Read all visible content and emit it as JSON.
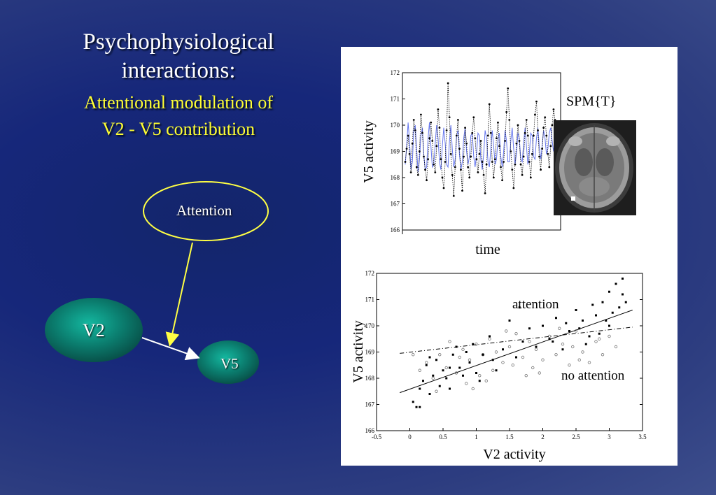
{
  "title": "Psychophysiological interactions:",
  "subtitle_line1": "Attentional modulation of",
  "subtitle_line2": "V2 - V5 contribution",
  "diagram": {
    "attention_label": "Attention",
    "v2_label": "V2",
    "v5_label": "V5",
    "colors": {
      "ellipse_stroke": "#ffff44",
      "arrow_attention": "#ffff44",
      "arrow_v2v5": "#ffffff",
      "node_fill": "#0d8a7a"
    }
  },
  "figure": {
    "spm_label": "SPM{T}",
    "brain_icon": "brain-slice-image"
  },
  "chart_data": [
    {
      "type": "line",
      "xlabel": "time",
      "ylabel": "V5 activity",
      "ylim": [
        166,
        172
      ],
      "yticks": [
        "166",
        "167",
        "168",
        "169",
        "170",
        "171",
        "172"
      ],
      "series": [
        {
          "values": [
            168.6,
            169.1,
            169.6,
            168.9,
            168.2,
            169.3,
            170.2,
            169.8,
            168.4,
            168.1,
            169.0,
            170.4,
            169.7,
            168.8,
            168.3,
            167.9,
            168.7,
            169.5,
            170.1,
            169.4,
            168.5,
            168.2,
            169.2,
            170.6,
            169.9,
            168.7,
            168.0,
            167.6,
            168.6,
            169.8,
            171.6,
            170.3,
            168.9,
            168.1,
            167.3,
            168.4,
            169.6,
            170.2,
            169.1,
            168.3,
            167.5,
            168.8,
            169.9,
            169.3,
            168.4,
            168.0,
            168.8,
            169.7,
            170.3,
            169.5,
            168.7,
            168.2,
            168.9,
            169.4,
            168.6,
            168.1,
            167.4,
            168.5,
            169.6,
            170.8,
            169.7,
            168.6,
            168.0,
            168.7,
            169.5,
            170.1,
            169.2,
            168.4,
            167.9,
            168.6,
            169.4,
            170.5,
            171.4,
            170.2,
            169.0,
            168.3,
            167.6,
            168.5,
            169.3,
            170.0,
            169.4,
            168.5,
            168.1,
            168.8,
            169.7,
            170.2,
            169.6,
            168.6,
            168.0,
            168.9,
            169.6,
            170.4,
            170.9,
            169.8,
            168.8,
            168.3,
            169.1,
            169.9,
            170.3,
            169.6,
            168.9,
            168.4,
            169.2,
            170.0,
            170.6,
            170.2,
            169.5
          ]
        },
        {
          "values": [
            168.5,
            169.2,
            170.1,
            169.4,
            168.3,
            168.6,
            169.8,
            170.0,
            169.1,
            168.2,
            168.7,
            169.6,
            169.9,
            168.9,
            168.3,
            168.4,
            169.5,
            170.1,
            169.2,
            168.4,
            168.5,
            169.3,
            170.0,
            169.5,
            168.6,
            168.3,
            169.2,
            169.9,
            169.3,
            168.5,
            168.4,
            169.4,
            170.0,
            169.1,
            168.4,
            168.7,
            169.6,
            169.8,
            168.9,
            168.3,
            168.6,
            169.5,
            169.9,
            169.0,
            168.5,
            168.8,
            169.6,
            169.7,
            168.8,
            168.4,
            168.9,
            169.7,
            169.6,
            168.7,
            168.3,
            168.9,
            169.8,
            169.5,
            168.6,
            168.4,
            169.1,
            169.8,
            169.2,
            168.5,
            168.7,
            169.5,
            169.7,
            168.8,
            168.4,
            169.0,
            169.8,
            169.4,
            168.6,
            168.6,
            169.4,
            169.9,
            169.1,
            168.5,
            168.9,
            169.7,
            169.5,
            168.7,
            168.6,
            169.3,
            169.9,
            169.2,
            168.5,
            168.9,
            169.7,
            169.6,
            168.8,
            168.7,
            169.5,
            169.9,
            169.2,
            168.7,
            169.2,
            169.8,
            169.5,
            168.9,
            169.1,
            169.7,
            169.9,
            169.4,
            169.0,
            169.5,
            169.8
          ]
        }
      ],
      "colors": {
        "raw": "#000000",
        "fit": "#6677ee"
      }
    },
    {
      "type": "scatter",
      "xlabel": "V2 activity",
      "ylabel": "V5 activity",
      "xlim": [
        -0.5,
        3.5
      ],
      "ylim": [
        166,
        172
      ],
      "xticks": [
        "-0.5",
        "0",
        "0.5",
        "1",
        "1.5",
        "2",
        "2.5",
        "3",
        "3.5"
      ],
      "yticks": [
        "166",
        "167",
        "168",
        "169",
        "170",
        "171",
        "172"
      ],
      "annotations": [
        "attention",
        "no attention"
      ],
      "series": [
        {
          "name": "attention",
          "points": [
            [
              0.05,
              167.1
            ],
            [
              0.1,
              166.9
            ],
            [
              0.15,
              167.6
            ],
            [
              0.2,
              167.9
            ],
            [
              0.25,
              168.5
            ],
            [
              0.3,
              167.4
            ],
            [
              0.35,
              168.1
            ],
            [
              0.4,
              168.7
            ],
            [
              0.45,
              167.7
            ],
            [
              0.5,
              168.3
            ],
            [
              0.55,
              168.0
            ],
            [
              0.6,
              167.6
            ],
            [
              0.65,
              168.9
            ],
            [
              0.7,
              169.2
            ],
            [
              0.75,
              168.4
            ],
            [
              0.8,
              168.1
            ],
            [
              0.85,
              169.0
            ],
            [
              0.9,
              168.6
            ],
            [
              0.95,
              169.3
            ],
            [
              1.0,
              168.2
            ],
            [
              1.1,
              168.9
            ],
            [
              1.2,
              169.6
            ],
            [
              1.3,
              168.3
            ],
            [
              1.4,
              169.1
            ],
            [
              1.5,
              170.2
            ],
            [
              1.6,
              168.8
            ],
            [
              1.7,
              169.4
            ],
            [
              1.8,
              169.9
            ],
            [
              1.9,
              169.2
            ],
            [
              2.0,
              170.0
            ],
            [
              2.1,
              169.5
            ],
            [
              2.15,
              169.4
            ],
            [
              2.2,
              170.3
            ],
            [
              2.3,
              169.1
            ],
            [
              2.4,
              169.8
            ],
            [
              2.5,
              170.6
            ],
            [
              2.55,
              169.9
            ],
            [
              2.6,
              170.2
            ],
            [
              2.7,
              169.6
            ],
            [
              2.75,
              170.8
            ],
            [
              2.8,
              170.4
            ],
            [
              2.85,
              169.7
            ],
            [
              2.9,
              170.9
            ],
            [
              2.95,
              170.2
            ],
            [
              3.0,
              171.3
            ],
            [
              3.05,
              170.5
            ],
            [
              3.1,
              171.6
            ],
            [
              3.15,
              170.7
            ],
            [
              3.2,
              171.8
            ],
            [
              3.25,
              170.9
            ],
            [
              0.3,
              168.8
            ],
            [
              0.6,
              168.4
            ],
            [
              1.25,
              168.7
            ],
            [
              1.65,
              170.7
            ],
            [
              2.35,
              170.1
            ],
            [
              2.65,
              169.3
            ],
            [
              3.0,
              170.0
            ],
            [
              3.2,
              171.2
            ],
            [
              0.15,
              166.9
            ],
            [
              1.05,
              167.9
            ]
          ],
          "fit": [
            [
              -0.15,
              167.45
            ],
            [
              3.35,
              170.6
            ]
          ]
        },
        {
          "name": "no attention",
          "points": [
            [
              0.05,
              168.9
            ],
            [
              0.15,
              168.3
            ],
            [
              0.25,
              168.6
            ],
            [
              0.35,
              168.0
            ],
            [
              0.45,
              168.9
            ],
            [
              0.55,
              168.4
            ],
            [
              0.6,
              169.4
            ],
            [
              0.7,
              168.2
            ],
            [
              0.8,
              169.1
            ],
            [
              0.85,
              167.8
            ],
            [
              0.9,
              168.7
            ],
            [
              1.0,
              169.3
            ],
            [
              1.05,
              168.1
            ],
            [
              1.1,
              168.9
            ],
            [
              1.2,
              169.5
            ],
            [
              1.25,
              168.3
            ],
            [
              1.3,
              169.0
            ],
            [
              1.4,
              168.6
            ],
            [
              1.5,
              169.2
            ],
            [
              1.55,
              168.5
            ],
            [
              1.6,
              169.7
            ],
            [
              1.7,
              168.8
            ],
            [
              1.8,
              169.4
            ],
            [
              1.85,
              168.4
            ],
            [
              1.9,
              169.1
            ],
            [
              2.0,
              168.7
            ],
            [
              2.1,
              169.6
            ],
            [
              2.2,
              168.9
            ],
            [
              2.3,
              169.3
            ],
            [
              2.4,
              168.5
            ],
            [
              2.5,
              169.8
            ],
            [
              2.6,
              169.0
            ],
            [
              2.7,
              168.6
            ],
            [
              2.8,
              169.4
            ],
            [
              2.9,
              168.9
            ],
            [
              3.0,
              169.6
            ],
            [
              3.1,
              169.2
            ],
            [
              0.4,
              167.5
            ],
            [
              0.75,
              168.8
            ],
            [
              1.15,
              167.9
            ],
            [
              1.45,
              169.8
            ],
            [
              1.95,
              168.2
            ],
            [
              2.25,
              169.9
            ],
            [
              2.55,
              168.7
            ],
            [
              2.85,
              169.5
            ],
            [
              0.95,
              167.6
            ],
            [
              1.75,
              168.1
            ],
            [
              2.45,
              169.2
            ]
          ],
          "fit": [
            [
              -0.15,
              168.95
            ],
            [
              3.35,
              169.95
            ]
          ]
        }
      ]
    }
  ]
}
